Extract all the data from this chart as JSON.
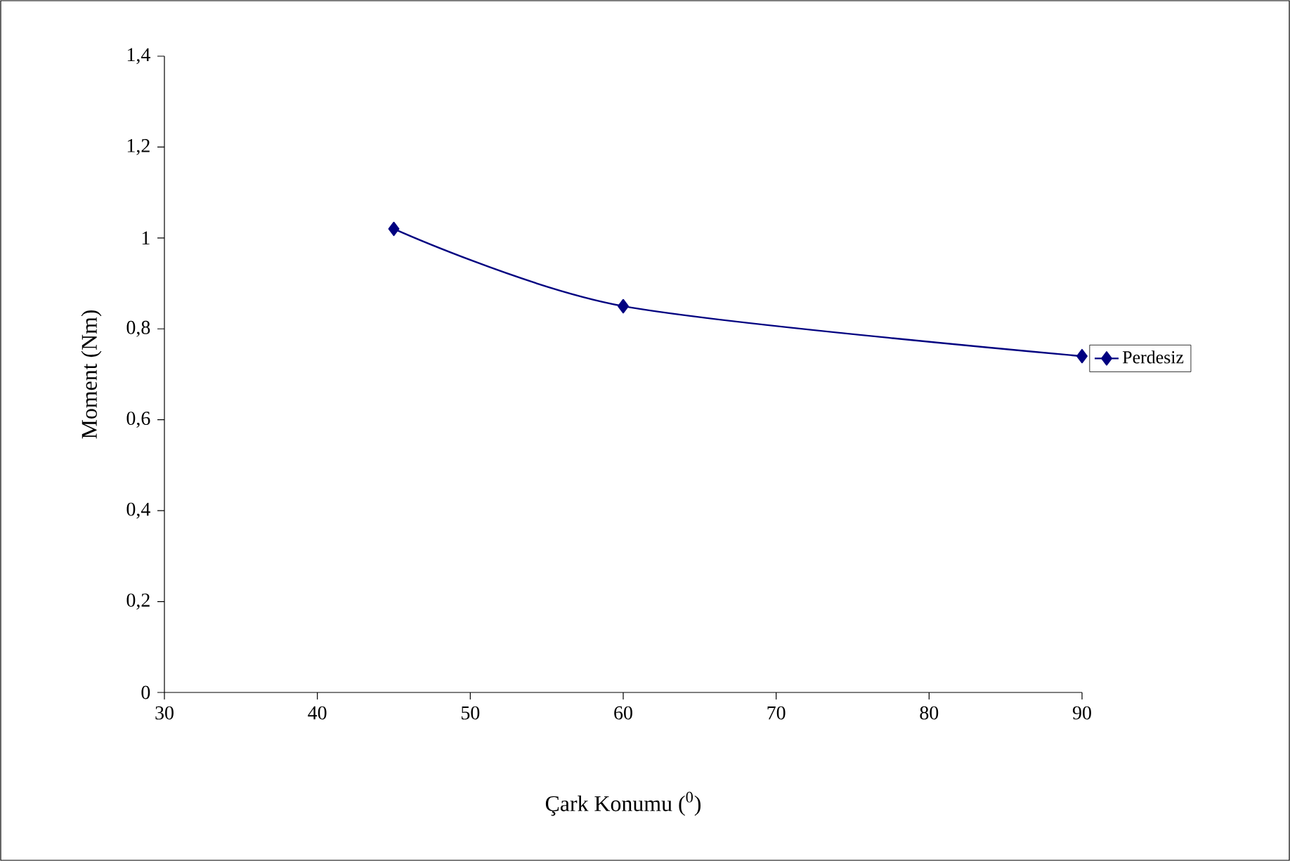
{
  "chart_data": {
    "type": "line",
    "xlabel": "Çark Konumu ($^{0}$)",
    "ylabel": "Moment (Nm)",
    "x": [
      45,
      60,
      90
    ],
    "series": [
      {
        "name": "Perdesiz",
        "color": "#000080",
        "values": [
          1.02,
          0.85,
          0.74
        ]
      }
    ],
    "xlim": [
      30,
      90
    ],
    "xticks": [
      30,
      40,
      50,
      60,
      70,
      80,
      90
    ],
    "ylim": [
      0,
      1.4
    ],
    "yticks": [
      0,
      {
        "value": 0.2,
        "label": "0,2"
      },
      {
        "value": 0.4,
        "label": "0,4"
      },
      {
        "value": 0.6,
        "label": "0,6"
      },
      {
        "value": 0.8,
        "label": "0,8"
      },
      1,
      {
        "value": 1.2,
        "label": "1,2"
      },
      {
        "value": 1.4,
        "label": "1,4"
      }
    ],
    "grid": false,
    "legend": "right",
    "marker": "diamond",
    "line_style": "solid"
  }
}
